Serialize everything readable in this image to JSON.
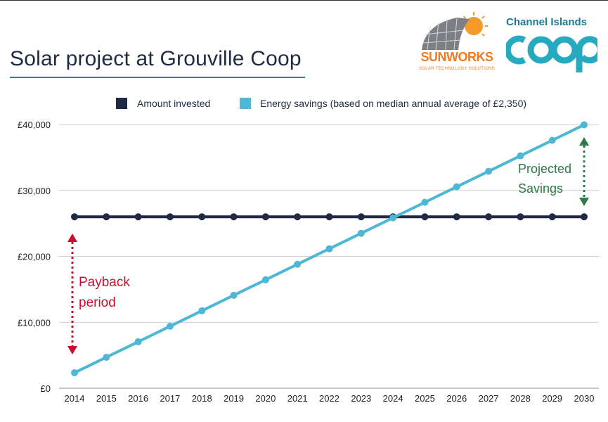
{
  "title": "Solar project at Grouville Coop",
  "logos": {
    "sunworks": {
      "name": "SUNWORKS",
      "tagline": "SOLAR TECHNOLOGY SOLUTIONS"
    },
    "coop": {
      "name": "Channel Islands",
      "word": "COOP"
    }
  },
  "colors": {
    "invested": "#1f2a44",
    "savings": "#4cb8d6",
    "payback": "#c8102e",
    "projected": "#2f7a47",
    "title_underline": "#1e8a96"
  },
  "annotations": {
    "payback": [
      "Payback",
      "period"
    ],
    "projected": [
      "Projected",
      "Savings"
    ]
  },
  "chart_data": {
    "type": "line",
    "title": "",
    "xlabel": "",
    "ylabel": "",
    "ylim": [
      0,
      40000
    ],
    "yticks": [
      0,
      10000,
      20000,
      30000,
      40000
    ],
    "ytick_labels": [
      "£0",
      "£10,000",
      "£20,000",
      "£30,000",
      "£40,000"
    ],
    "grid": "horizontal",
    "legend_position": "top",
    "x": [
      "2014",
      "2015",
      "2016",
      "2017",
      "2018",
      "2019",
      "2020",
      "2021",
      "2022",
      "2023",
      "2024",
      "2025",
      "2026",
      "2027",
      "2028",
      "2029",
      "2030"
    ],
    "series": [
      {
        "name": "Amount invested",
        "values": [
          26000,
          26000,
          26000,
          26000,
          26000,
          26000,
          26000,
          26000,
          26000,
          26000,
          26000,
          26000,
          26000,
          26000,
          26000,
          26000,
          26000
        ]
      },
      {
        "name": "Energy savings (based on median annual average of £2,350)",
        "values": [
          2350,
          4700,
          7050,
          9400,
          11750,
          14100,
          16450,
          18800,
          21150,
          23500,
          25850,
          28200,
          30550,
          32900,
          35250,
          37600,
          39950
        ]
      }
    ]
  }
}
